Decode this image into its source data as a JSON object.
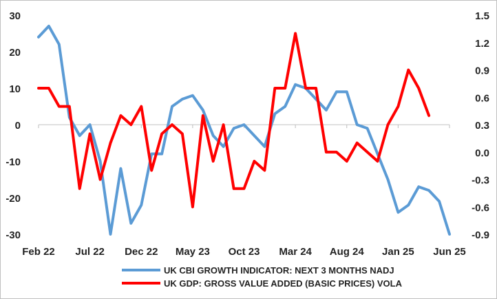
{
  "chart_data": {
    "type": "line",
    "x": [
      "Feb 22",
      "Mar 22",
      "Apr 22",
      "May 22",
      "Jun 22",
      "Jul 22",
      "Aug 22",
      "Sep 22",
      "Oct 22",
      "Nov 22",
      "Dec 22",
      "Jan 23",
      "Feb 23",
      "Mar 23",
      "Apr 23",
      "May 23",
      "Jun 23",
      "Jul 23",
      "Aug 23",
      "Sep 23",
      "Oct 23",
      "Nov 23",
      "Dec 23",
      "Jan 24",
      "Feb 24",
      "Mar 24",
      "Apr 24",
      "May 24",
      "Jun 24",
      "Jul 24",
      "Aug 24",
      "Sep 24",
      "Oct 24",
      "Nov 24",
      "Dec 24",
      "Jan 25",
      "Feb 25",
      "Mar 25",
      "Apr 25",
      "May 25",
      "Jun 25"
    ],
    "x_tick_labels": [
      "Feb 22",
      "Jul 22",
      "Dec 22",
      "May 23",
      "Oct 23",
      "Mar 24",
      "Aug 24",
      "Jan 25",
      "Jun 25"
    ],
    "series": [
      {
        "name": "UK CBI GROWTH INDICATOR: NEXT 3 MONTHS NADJ",
        "axis": "left",
        "color": "#5b9bd5",
        "values": [
          24,
          27,
          22,
          2,
          -3,
          0,
          -10,
          -30,
          -12,
          -27,
          -22,
          -8,
          -8,
          5,
          7,
          8,
          4,
          -3,
          -6,
          -1,
          0,
          -3,
          -6,
          3,
          5,
          11,
          10,
          7,
          4,
          9,
          9,
          0,
          -1,
          -8,
          -15,
          -24,
          -22,
          -17,
          -18,
          -21,
          -30
        ]
      },
      {
        "name": "UK GDP: GROSS VALUE ADDED (BASIC PRICES) VOLA",
        "axis": "right",
        "color": "#ff0000",
        "values": [
          0.7,
          0.7,
          0.5,
          0.5,
          -0.4,
          0.2,
          -0.3,
          0.1,
          0.4,
          0.3,
          0.5,
          -0.2,
          0.2,
          0.3,
          0.2,
          -0.6,
          0.4,
          -0.1,
          0.3,
          -0.4,
          -0.4,
          -0.1,
          -0.2,
          0.7,
          0.7,
          1.3,
          0.7,
          0.7,
          0.0,
          0.0,
          -0.1,
          0.1,
          0.0,
          -0.1,
          0.3,
          0.5,
          0.9,
          0.7,
          0.4,
          null,
          null
        ]
      }
    ],
    "y_left": {
      "min": -30,
      "max": 30,
      "ticks": [
        "30",
        "20",
        "10",
        "0",
        "-10",
        "-20",
        "-30"
      ]
    },
    "y_right": {
      "min": -0.9,
      "max": 1.5,
      "ticks": [
        "1.5",
        "1.2",
        "0.9",
        "0.6",
        "0.3",
        "0.0",
        "-0.3",
        "-0.6",
        "-0.9"
      ]
    },
    "grid": false,
    "legend_position": "bottom"
  }
}
